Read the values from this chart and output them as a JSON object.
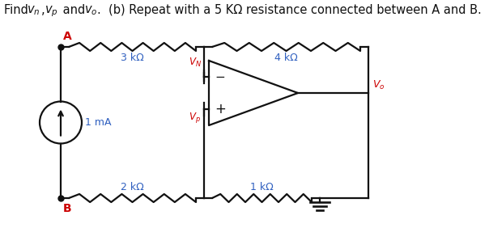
{
  "title_part1": "Find ",
  "title_math": "v_n, v_p",
  "title_part2": " and ",
  "title_math2": "v_o",
  "title_part3": ".  (b) Repeat with a 5 KΩ resistance connected between A and B.",
  "bg_color": "#ffffff",
  "blue": "#3060C0",
  "red": "#CC0000",
  "black": "#111111",
  "label_3k": "3 kΩ",
  "label_4k": "4 kΩ",
  "label_2k": "2 kΩ",
  "label_1k": "1 kΩ",
  "label_1mA": "1 mA",
  "label_VN": "$V_N$",
  "label_VP": "$V_p$",
  "label_Vo": "$V_o$",
  "label_A": "A",
  "label_B": "B",
  "lw": 1.6,
  "resistor_bump": 5,
  "resistor_teeth": 6
}
